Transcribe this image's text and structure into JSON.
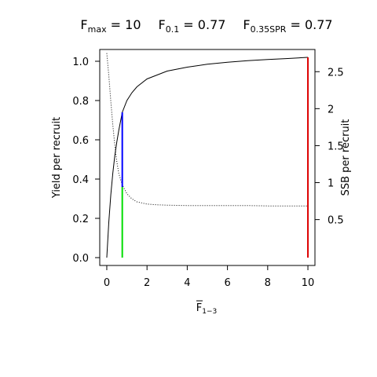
{
  "chart_data": {
    "type": "line",
    "title_parts": [
      {
        "base": "F",
        "sub": "max",
        "rest": " = 10"
      },
      {
        "base": "F",
        "sub": "0.1",
        "rest": " = 0.77"
      },
      {
        "base": "F",
        "sub": "0.35SPR",
        "rest": " = 0.77"
      }
    ],
    "xlabel": {
      "base": "F",
      "sub": "1−3"
    },
    "ylabel": "Yield per recruit",
    "y2label": "SSB per recruit",
    "xlim": [
      -0.35,
      10.35
    ],
    "ylim": [
      -0.04,
      1.06
    ],
    "y2lim": [
      -0.12,
      2.8
    ],
    "x_ticks": [
      "0",
      "2",
      "4",
      "6",
      "8",
      "10"
    ],
    "y_ticks": [
      "0.0",
      "0.2",
      "0.4",
      "0.6",
      "0.8",
      "1.0"
    ],
    "y2_ticks": [
      "0.5",
      "1",
      "1.5",
      "2",
      "2.5"
    ],
    "series": [
      {
        "axis": "left",
        "style": "solid",
        "color": "#000000",
        "x": [
          0,
          0.1,
          0.2,
          0.3,
          0.4,
          0.5,
          0.6,
          0.77,
          1.0,
          1.25,
          1.5,
          2.0,
          2.5,
          3,
          4,
          5,
          6,
          7,
          8,
          9,
          10
        ],
        "y": [
          0.0,
          0.18,
          0.32,
          0.43,
          0.52,
          0.59,
          0.65,
          0.74,
          0.8,
          0.84,
          0.87,
          0.91,
          0.93,
          0.95,
          0.97,
          0.985,
          0.995,
          1.003,
          1.009,
          1.014,
          1.02
        ]
      },
      {
        "axis": "right",
        "style": "dotted",
        "color": "#000000",
        "x": [
          0,
          0.1,
          0.2,
          0.3,
          0.4,
          0.5,
          0.6,
          0.77,
          1.0,
          1.25,
          1.5,
          2.0,
          2.5,
          3,
          4,
          5,
          6,
          7,
          8,
          9,
          10
        ],
        "y": [
          2.75,
          2.45,
          2.1,
          1.78,
          1.5,
          1.28,
          1.12,
          0.97,
          0.85,
          0.78,
          0.74,
          0.71,
          0.7,
          0.695,
          0.69,
          0.69,
          0.69,
          0.69,
          0.685,
          0.685,
          0.685
        ]
      }
    ],
    "reference_lines": [
      {
        "x": 0.77,
        "y_from": 0.0,
        "y_to": 0.36,
        "color": "#00dd00"
      },
      {
        "x": 0.77,
        "y_from": 0.36,
        "y_to": 0.74,
        "color": "#0000ff"
      },
      {
        "x": 10,
        "y_from": 0.0,
        "y_to": 1.02,
        "color": "#dd0000"
      }
    ]
  }
}
